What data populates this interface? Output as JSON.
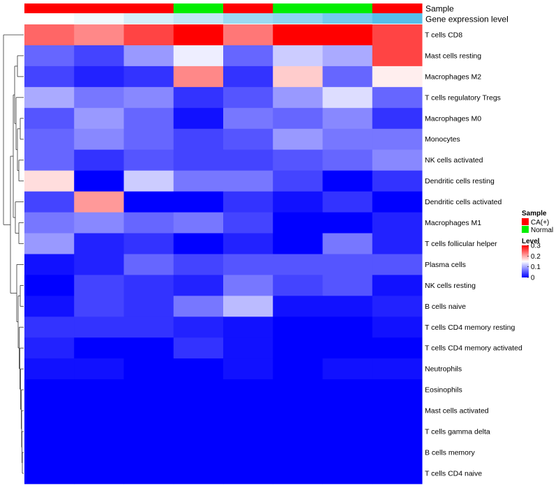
{
  "chart_data": {
    "type": "heatmap",
    "title": "",
    "annotation_rows": [
      {
        "label": "Sample",
        "values": [
          "CA(+)",
          "CA(+)",
          "CA(+)",
          "Normal",
          "CA(+)",
          "Normal",
          "Normal",
          "CA(+)"
        ]
      },
      {
        "label": "Gene expression level",
        "values": [
          0.0,
          0.01,
          0.03,
          0.045,
          0.07,
          0.08,
          0.1,
          0.12
        ]
      }
    ],
    "rows": [
      "T cells CD8",
      "Mast cells resting",
      "Macrophages M2",
      "T cells regulatory  Tregs",
      "Macrophages M0",
      "Monocytes",
      "NK cells activated",
      "Dendritic cells resting",
      "Dendritic cells activated",
      "Macrophages M1",
      "T cells follicular helper",
      "Plasma cells",
      "NK cells resting",
      "B cells naive",
      "T cells CD4 memory resting",
      "T cells CD4 memory activated",
      "Neutrophils",
      "Eosinophils",
      "Mast cells activated",
      "T cells gamma delta",
      "B cells memory",
      "T cells CD4 naive"
    ],
    "values": [
      [
        0.24,
        0.22,
        0.26,
        0.3,
        0.23,
        0.3,
        0.3,
        0.26
      ],
      [
        0.06,
        0.04,
        0.09,
        0.14,
        0.06,
        0.12,
        0.1,
        0.26
      ],
      [
        0.04,
        0.02,
        0.03,
        0.22,
        0.03,
        0.18,
        0.06,
        0.16
      ],
      [
        0.1,
        0.07,
        0.08,
        0.03,
        0.05,
        0.09,
        0.13,
        0.06
      ],
      [
        0.05,
        0.09,
        0.06,
        0.01,
        0.07,
        0.06,
        0.08,
        0.03
      ],
      [
        0.06,
        0.08,
        0.06,
        0.04,
        0.05,
        0.09,
        0.07,
        0.07
      ],
      [
        0.06,
        0.03,
        0.05,
        0.04,
        0.04,
        0.05,
        0.06,
        0.08
      ],
      [
        0.17,
        0.0,
        0.12,
        0.07,
        0.07,
        0.04,
        0.0,
        0.03
      ],
      [
        0.04,
        0.21,
        0.0,
        0.0,
        0.03,
        0.01,
        0.03,
        0.0
      ],
      [
        0.07,
        0.08,
        0.06,
        0.07,
        0.04,
        0.0,
        0.0,
        0.02
      ],
      [
        0.09,
        0.02,
        0.03,
        0.0,
        0.02,
        0.0,
        0.07,
        0.02
      ],
      [
        0.01,
        0.02,
        0.06,
        0.04,
        0.05,
        0.05,
        0.05,
        0.05
      ],
      [
        0.0,
        0.04,
        0.03,
        0.02,
        0.07,
        0.04,
        0.05,
        0.01
      ],
      [
        0.01,
        0.04,
        0.03,
        0.07,
        0.11,
        0.01,
        0.01,
        0.02
      ],
      [
        0.03,
        0.03,
        0.03,
        0.02,
        0.01,
        0.0,
        0.0,
        0.01
      ],
      [
        0.02,
        0.0,
        0.0,
        0.03,
        0.01,
        0.0,
        0.0,
        0.0
      ],
      [
        0.01,
        0.01,
        0.0,
        0.0,
        0.01,
        0.0,
        0.01,
        0.01
      ],
      [
        0.0,
        0.0,
        0.0,
        0.0,
        0.0,
        0.0,
        0.0,
        0.0
      ],
      [
        0.0,
        0.0,
        0.0,
        0.0,
        0.0,
        0.0,
        0.0,
        0.0
      ],
      [
        0.0,
        0.0,
        0.0,
        0.0,
        0.0,
        0.0,
        0.0,
        0.0
      ],
      [
        0.0,
        0.0,
        0.0,
        0.0,
        0.0,
        0.0,
        0.0,
        0.0
      ],
      [
        0.0,
        0.0,
        0.0,
        0.0,
        0.0,
        0.0,
        0.0,
        0.0
      ]
    ],
    "color_scale": {
      "low": "#0000ff",
      "mid": "#ffffff",
      "high": "#ff0000",
      "min": 0,
      "mid_value": 0.15,
      "max": 0.3
    },
    "expression_scale": {
      "low": "#ffffff",
      "high": "#56bfea",
      "min": 0,
      "max": 0.12
    },
    "row_dendrogram": true,
    "legends": {
      "sample": {
        "title": "Sample",
        "items": [
          {
            "label": "CA(+)",
            "color": "#ff0000"
          },
          {
            "label": "Normal",
            "color": "#00ee00"
          }
        ]
      },
      "level": {
        "title": "Level",
        "ticks": [
          0.3,
          0.2,
          0.1,
          0
        ]
      }
    },
    "legend_position": "right"
  }
}
